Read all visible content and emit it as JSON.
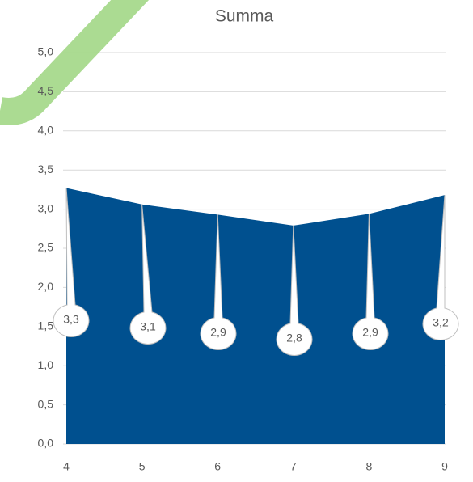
{
  "chart_data": {
    "type": "area",
    "title": "Summa",
    "categories": [
      "4",
      "5",
      "6",
      "7",
      "8",
      "9"
    ],
    "values": [
      3.27,
      3.06,
      2.93,
      2.79,
      2.94,
      3.18
    ],
    "value_labels": [
      "3,3",
      "3,1",
      "2,9",
      "2,8",
      "2,9",
      "3,2"
    ],
    "color": "#00508f",
    "ylim": [
      0,
      5
    ],
    "yticks": [
      {
        "value": 0,
        "label": "0,0"
      },
      {
        "value": 0.5,
        "label": "0,5"
      },
      {
        "value": 1,
        "label": "1,0"
      },
      {
        "value": 1.5,
        "label": "1,5"
      },
      {
        "value": 2,
        "label": "2,0"
      },
      {
        "value": 2.5,
        "label": "2,5"
      },
      {
        "value": 3,
        "label": "3,0"
      },
      {
        "value": 3.5,
        "label": "3,5"
      },
      {
        "value": 4,
        "label": "4,0"
      },
      {
        "value": 4.5,
        "label": "4,5"
      },
      {
        "value": 5,
        "label": "5,0"
      }
    ],
    "grid": true
  }
}
